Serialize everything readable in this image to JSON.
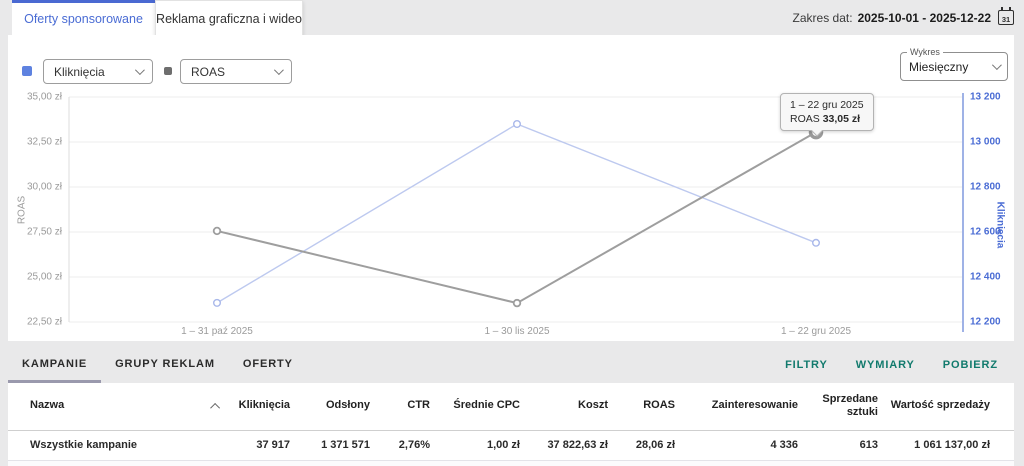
{
  "tabs": [
    {
      "label": "Oferty sponsorowane",
      "active": true
    },
    {
      "label": "Reklama graficzna i wideo",
      "active": false
    }
  ],
  "date_range": {
    "label": "Zakres dat:",
    "value": "2025-10-01 - 2025-12-22",
    "calendar_day": "31"
  },
  "controls": {
    "metric_select_1": {
      "value": "Kliknięcia",
      "swatch_color": "#5e82e0"
    },
    "metric_select_2": {
      "value": "ROAS",
      "swatch_color": "#6e6e6e"
    },
    "chart_type": {
      "label": "Wykres",
      "value": "Miesięczny"
    }
  },
  "chart_data": {
    "type": "line",
    "x_categories": [
      "1 – 31 paź 2025",
      "1 – 30 lis 2025",
      "1 – 22 gru 2025"
    ],
    "series": [
      {
        "name": "Kliknięcia",
        "axis": "right",
        "color": "#bdc9ef",
        "point_color": "#a9b8ea",
        "values": [
          12285,
          13080,
          12552
        ]
      },
      {
        "name": "ROAS",
        "axis": "left",
        "color": "#9e9e9e",
        "point_color": "#9e9e9e",
        "values": [
          27.56,
          23.55,
          33.05
        ]
      }
    ],
    "left_axis": {
      "label": "ROAS",
      "min": 22.5,
      "max": 35,
      "ticks": [
        "35,00 zł",
        "32,50 zł",
        "30,00 zł",
        "27,50 zł",
        "25,00 zł",
        "22,50 zł"
      ]
    },
    "right_axis": {
      "label": "Kliknięcia",
      "min": 12200,
      "max": 13200,
      "ticks": [
        "13 200",
        "13 000",
        "12 800",
        "12 600",
        "12 400",
        "12 200"
      ]
    },
    "grid": true,
    "legend_position": "none",
    "tooltip": {
      "line1": "1 – 22 gru 2025",
      "label": "ROAS",
      "value": "33,05 zł",
      "series": "ROAS",
      "point_index": 2
    }
  },
  "bottom_tabs": [
    {
      "label": "KAMPANIE",
      "active": true
    },
    {
      "label": "GRUPY REKLAM",
      "active": false
    },
    {
      "label": "OFERTY",
      "active": false
    }
  ],
  "action_links": {
    "filters": "FILTRY",
    "dimensions": "WYMIARY",
    "download": "POBIERZ"
  },
  "table": {
    "columns": [
      "Nazwa",
      "Kliknięcia",
      "Odsłony",
      "CTR",
      "Średnie CPC",
      "Koszt",
      "ROAS",
      "Zainteresowanie",
      "Sprzedane sztuki",
      "Wartość sprzedaży"
    ],
    "rows": [
      {
        "cells": [
          "Wszystkie kampanie",
          "37 917",
          "1 371 571",
          "2,76%",
          "1,00 zł",
          "37 822,63 zł",
          "28,06 zł",
          "4 336",
          "613",
          "1 061 137,00 zł"
        ]
      }
    ]
  },
  "colors": {
    "accent_blue": "#4a6cd4",
    "teal_link": "#117a6d",
    "gray_line": "#9e9e9e",
    "blue_line": "#bdc9ef"
  }
}
